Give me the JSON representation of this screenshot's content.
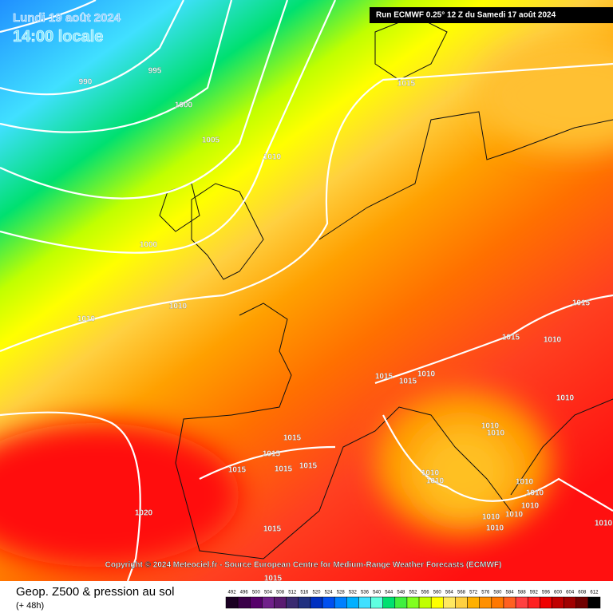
{
  "header": {
    "date": "Lundi 19 août 2024",
    "time": "14:00 locale",
    "run": "Run ECMWF 0.25° 12 Z du Samedi 17 août 2024"
  },
  "isobar_labels": [
    "990",
    "995",
    "1000",
    "1005",
    "1010",
    "1015",
    "1000",
    "1010",
    "1010",
    "1015",
    "1015",
    "1010",
    "1015",
    "1010",
    "1015",
    "1010",
    "1010",
    "1010",
    "1015",
    "1015",
    "1015",
    "1015",
    "1015",
    "1010",
    "1010",
    "1010",
    "1010",
    "1010",
    "1010",
    "1010",
    "1020",
    "1015",
    "1015",
    "1010",
    "1010"
  ],
  "copyright": "Copyright © 2024 Meteociel.fr - Source European Centre for Medium-Range Weather Forecasts (ECMWF)",
  "footer": {
    "title": "Geop. Z500 & pression au sol",
    "lead": "(+ 48h)"
  },
  "scale": {
    "labels": [
      "492",
      "496",
      "500",
      "504",
      "508",
      "512",
      "516",
      "520",
      "524",
      "528",
      "532",
      "536",
      "540",
      "544",
      "548",
      "552",
      "556",
      "560",
      "564",
      "568",
      "572",
      "576",
      "580",
      "584",
      "588",
      "592",
      "596",
      "600",
      "604",
      "608",
      "612"
    ],
    "colors": [
      "#1a0022",
      "#3a0048",
      "#56006a",
      "#70208a",
      "#5a1a70",
      "#3a2a70",
      "#203080",
      "#0030c0",
      "#0050f0",
      "#0080ff",
      "#00b0ff",
      "#40e0ff",
      "#60ffe0",
      "#00e070",
      "#40f040",
      "#80ff20",
      "#c0ff00",
      "#ffff00",
      "#ffe860",
      "#ffd040",
      "#ffb000",
      "#ff9000",
      "#ff7800",
      "#ff6020",
      "#ff4040",
      "#ff2020",
      "#f00000",
      "#c00000",
      "#a00000",
      "#700000",
      "#000000"
    ]
  }
}
